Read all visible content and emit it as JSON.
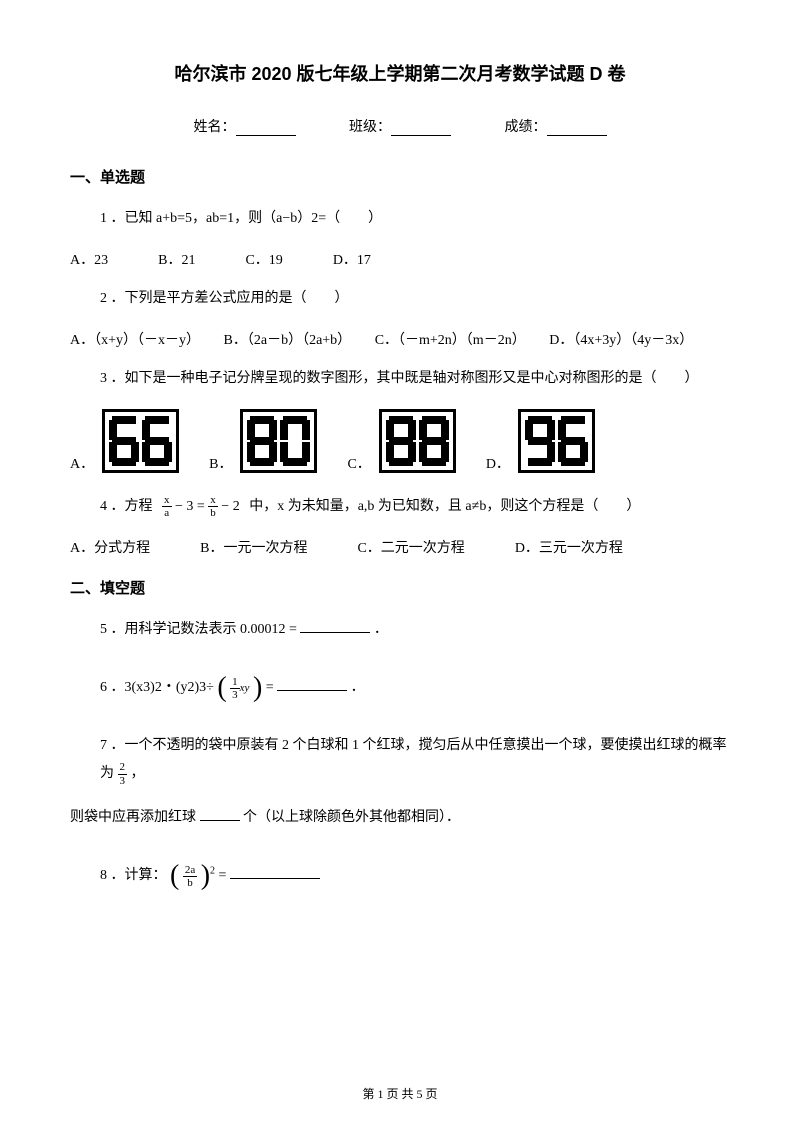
{
  "title": "哈尔滨市 2020 版七年级上学期第二次月考数学试题 D 卷",
  "header": {
    "name_label": "姓名：",
    "class_label": "班级：",
    "score_label": "成绩："
  },
  "section1": {
    "title": "一、单选题",
    "q1": {
      "text": "1 ．已知 a+b=5，ab=1，则（a−b）2=（　　）",
      "optA": "A．23",
      "optB": "B．21",
      "optC": "C．19",
      "optD": "D．17"
    },
    "q2": {
      "text": "2 ．下列是平方差公式应用的是（　　）",
      "optA": "A．（x+y）（－x－y）",
      "optB": "B．（2a－b）（2a+b）",
      "optC": "C．（－m+2n）（m－2n）",
      "optD": "D．（4x+3y）（4y－3x）"
    },
    "q3": {
      "text": "3 ．如下是一种电子记分牌呈现的数字图形，其中既是轴对称图形又是中心对称图形的是（　　）",
      "optA": "A．",
      "optB": "B．",
      "optC": "C．",
      "optD": "D．",
      "digits": {
        "A": [
          6,
          6
        ],
        "B": [
          8,
          0
        ],
        "C": [
          8,
          8
        ],
        "D": [
          9,
          6
        ]
      }
    },
    "q4": {
      "pre": "4 ．方程",
      "eq_left_num": "x",
      "eq_left_den": "a",
      "eq_minus": "− 3 =",
      "eq_right_num": "x",
      "eq_right_den": "b",
      "eq_tail": "− 2",
      "post": "中，x 为未知量，a,b 为已知数，且 a≠b，则这个方程是（　　）",
      "optA": "A．分式方程",
      "optB": "B．一元一次方程",
      "optC": "C．二元一次方程",
      "optD": "D．三元一次方程"
    }
  },
  "section2": {
    "title": "二、填空题",
    "q5": {
      "pre": "5 ．用科学记数法表示",
      "val": "0.00012 =",
      "post": "．"
    },
    "q6": {
      "pre": "6 ．3(x3)2・(y2)3÷",
      "frac_num": "1",
      "frac_den": "3",
      "frac_tail": "xy",
      "post": "=",
      "end": "．"
    },
    "q7": {
      "text_a": "7 ．一个不透明的袋中原装有 2 个白球和 1 个红球，搅匀后从中任意摸出一个球，要使摸出红球的概率为",
      "frac_num": "2",
      "frac_den": "3",
      "text_b": "，",
      "text_c": "则袋中应再添加红球",
      "text_d": "个（以上球除颜色外其他都相同）．"
    },
    "q8": {
      "pre": "8 ．计算：",
      "frac_num": "2a",
      "frac_den": "b",
      "exp": "2",
      "post": "="
    }
  },
  "footer": "第 1 页 共 5 页"
}
